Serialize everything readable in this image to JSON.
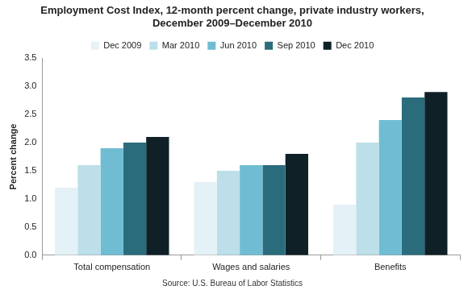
{
  "chart_data": {
    "type": "bar",
    "title": [
      "Employment Cost Index, 12-month percent change, private industry workers,",
      "December 2009–December 2010"
    ],
    "y_label": "Percent change",
    "source": "Source: U.S. Bureau of Labor Statistics",
    "categories": [
      "Total compensation",
      "Wages and salaries",
      "Benefits"
    ],
    "series": [
      {
        "name": "Dec 2009",
        "color": "#e4f1f6",
        "values": [
          1.2,
          1.3,
          0.9
        ]
      },
      {
        "name": "Mar 2010",
        "color": "#bcdfe9",
        "values": [
          1.6,
          1.5,
          2.0
        ]
      },
      {
        "name": "Jun 2010",
        "color": "#70bdd3",
        "values": [
          1.9,
          1.6,
          2.4
        ]
      },
      {
        "name": "Sep 2010",
        "color": "#2b6c7c",
        "values": [
          2.0,
          1.6,
          2.8
        ]
      },
      {
        "name": "Dec 2010",
        "color": "#0f2027",
        "values": [
          2.1,
          1.8,
          2.9
        ]
      }
    ],
    "ylim": [
      0,
      3.5
    ],
    "yticks": [
      {
        "value": 0,
        "label": "0.0"
      },
      0.5,
      {
        "value": 1,
        "label": "1.0"
      },
      1.5,
      {
        "value": 2,
        "label": "2.0"
      },
      2.5,
      {
        "value": 3,
        "label": "3.0"
      },
      3.5
    ],
    "grid": false,
    "legend": "top"
  }
}
